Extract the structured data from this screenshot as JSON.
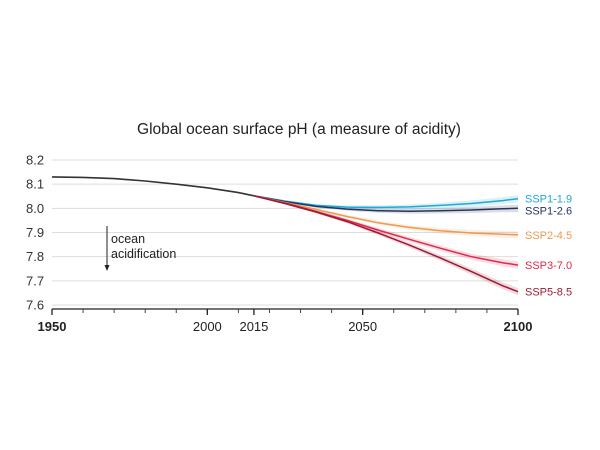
{
  "chart_data": {
    "type": "line",
    "title": "Global ocean surface pH (a measure of acidity)",
    "xlabel": "",
    "ylabel": "",
    "xlim": [
      1950,
      2100
    ],
    "ylim": [
      7.6,
      8.2
    ],
    "x_ticks": [
      1950,
      2000,
      2015,
      2050,
      2100
    ],
    "x_ticks_bold": [
      1950,
      2100
    ],
    "y_ticks": [
      "7.6",
      "7.7",
      "7.8",
      "7.9",
      "8.0",
      "8.1",
      "8.2"
    ],
    "grid": true,
    "annotation": [
      "ocean",
      "acidification"
    ],
    "historical": {
      "color": "#333333",
      "x": [
        1950,
        1960,
        1970,
        1980,
        1990,
        2000,
        2010,
        2015
      ],
      "y": [
        8.13,
        8.128,
        8.123,
        8.113,
        8.1,
        8.085,
        8.065,
        8.052
      ]
    },
    "series": [
      {
        "name": "SSP1-1.9",
        "color": "#1ea9d6",
        "x": [
          2015,
          2025,
          2035,
          2045,
          2055,
          2065,
          2075,
          2085,
          2095,
          2100
        ],
        "y": [
          8.052,
          8.03,
          8.012,
          8.005,
          8.004,
          8.006,
          8.012,
          8.02,
          8.032,
          8.04
        ]
      },
      {
        "name": "SSP1-2.6",
        "color": "#27345d",
        "x": [
          2015,
          2025,
          2035,
          2045,
          2055,
          2065,
          2075,
          2085,
          2095,
          2100
        ],
        "y": [
          8.052,
          8.028,
          8.008,
          7.997,
          7.99,
          7.988,
          7.99,
          7.993,
          7.998,
          8.0
        ]
      },
      {
        "name": "SSP2-4.5",
        "color": "#eb9a52",
        "x": [
          2015,
          2025,
          2035,
          2045,
          2055,
          2065,
          2075,
          2085,
          2095,
          2100
        ],
        "y": [
          8.052,
          8.024,
          7.995,
          7.966,
          7.94,
          7.921,
          7.907,
          7.898,
          7.893,
          7.89
        ]
      },
      {
        "name": "SSP3-7.0",
        "color": "#e0274d",
        "x": [
          2015,
          2025,
          2035,
          2045,
          2055,
          2065,
          2075,
          2085,
          2095,
          2100
        ],
        "y": [
          8.052,
          8.022,
          7.987,
          7.95,
          7.91,
          7.872,
          7.835,
          7.8,
          7.775,
          7.765
        ]
      },
      {
        "name": "SSP5-8.5",
        "color": "#9e1a33",
        "x": [
          2015,
          2025,
          2035,
          2045,
          2055,
          2065,
          2075,
          2085,
          2095,
          2100
        ],
        "y": [
          8.052,
          8.02,
          7.985,
          7.945,
          7.898,
          7.848,
          7.795,
          7.738,
          7.68,
          7.655
        ]
      }
    ]
  }
}
